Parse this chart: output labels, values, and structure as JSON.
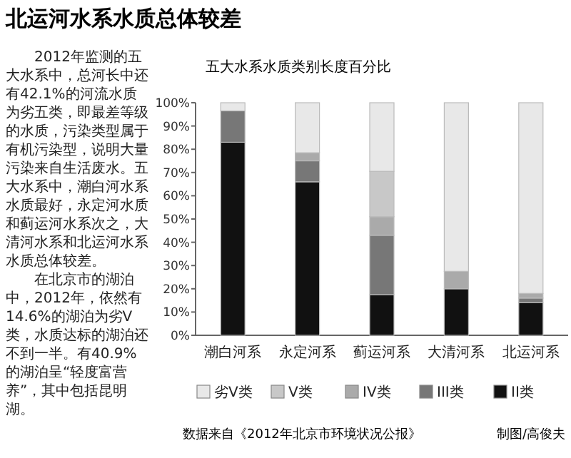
{
  "chart_data": {
    "type": "bar",
    "title": "北运河水系水质总体较差",
    "subtitle": "五大水系水质类别长度百分比",
    "categories": [
      "潮白河系",
      "永定河系",
      "蓟运河系",
      "大清河系",
      "北运河系"
    ],
    "stacked": true,
    "legend": "bottom",
    "grid": false,
    "series": [
      {
        "name": "II类",
        "color": "#111111",
        "values": [
          83,
          66,
          17.5,
          20,
          14
        ]
      },
      {
        "name": "III类",
        "color": "#777777",
        "values": [
          13.5,
          9,
          25.5,
          0,
          2
        ]
      },
      {
        "name": "IV类",
        "color": "#aaaaaa",
        "values": [
          0,
          3.5,
          8,
          7.5,
          2
        ]
      },
      {
        "name": "V类",
        "color": "#c8c8c8",
        "values": [
          0,
          0,
          19.5,
          0,
          0
        ]
      },
      {
        "name": "劣V类",
        "color": "#e8e8e8",
        "values": [
          3.5,
          21.5,
          29.5,
          72.5,
          82
        ]
      }
    ],
    "ylim": [
      0,
      100
    ],
    "yticks": [
      {
        "value": 0,
        "label": "0%"
      },
      {
        "value": 10,
        "label": "10%"
      },
      {
        "value": 20,
        "label": "20%"
      },
      {
        "value": 30,
        "label": "30%"
      },
      {
        "value": 40,
        "label": "40%"
      },
      {
        "value": 50,
        "label": "50%"
      },
      {
        "value": 60,
        "label": "60%"
      },
      {
        "value": 70,
        "label": "70%"
      },
      {
        "value": 80,
        "label": "80%"
      },
      {
        "value": 90,
        "label": "90%"
      },
      {
        "value": 100,
        "label": "100%"
      }
    ],
    "annotations": [
      "2012年监测的五大水系中，总河长中还有42.1%的河流水质为劣五类，即最差等级的水质，污染类型属于有机污染型，说明大量污染来自生活废水。五大水系中，潮白河水系水质最好，永定河水质和蓟运河水系次之，大清河水系和北运河水系水质总体较差。",
      "在北京市的湖泊中，2012年，依然有14.6%的湖泊为劣V类，水质达标的湖泊还不到一半。有40.9%的湖泊呈“轻度富营养”，其中包括昆明湖。",
      "数据来自《2012年北京市环境状况公报》",
      "制图/高俊夫"
    ]
  }
}
